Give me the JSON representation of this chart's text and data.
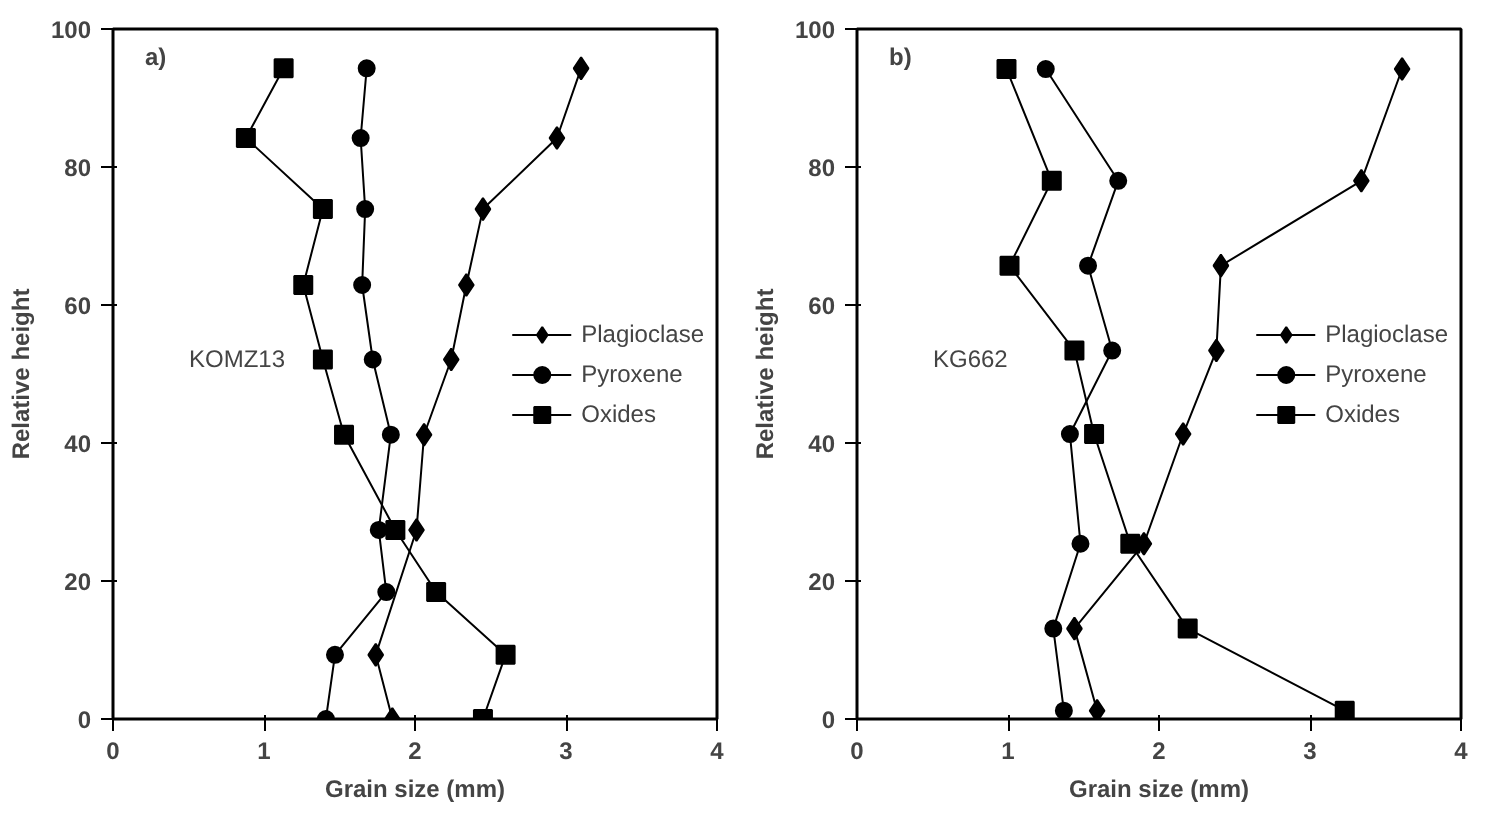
{
  "chart_data": [
    {
      "type": "line",
      "xlabel": "Grain size (mm)",
      "ylabel": "Relative height",
      "annotations": [
        "a)",
        "KOMZ13"
      ],
      "xlim": [
        0,
        4
      ],
      "ylim": [
        0,
        100
      ],
      "xticks": [
        0,
        1,
        2,
        3,
        4
      ],
      "yticks": [
        0,
        20,
        40,
        60,
        80,
        100
      ],
      "grid": false,
      "legend": "right",
      "series": [
        {
          "name": "Plagioclase",
          "color": "#000000",
          "marker": "diamond",
          "x": [
            3.1,
            2.94,
            2.45,
            2.34,
            2.24,
            2.06,
            2.01,
            null,
            1.74,
            1.85
          ],
          "values": [
            94.3,
            84.2,
            73.9,
            62.9,
            52.1,
            41.2,
            27.4,
            null,
            9.3,
            0
          ]
        },
        {
          "name": "Pyroxene",
          "color": "#000000",
          "marker": "circle",
          "x": [
            1.68,
            1.64,
            1.67,
            1.65,
            1.72,
            1.84,
            1.76,
            1.81,
            1.47,
            1.41
          ],
          "values": [
            94.3,
            84.2,
            73.9,
            62.9,
            52.1,
            41.2,
            27.4,
            18.4,
            9.3,
            0
          ]
        },
        {
          "name": "Oxides",
          "color": "#000000",
          "marker": "square",
          "x": [
            1.13,
            0.88,
            1.39,
            1.26,
            1.39,
            1.53,
            1.87,
            2.14,
            2.6,
            2.45
          ],
          "values": [
            94.3,
            84.2,
            73.9,
            62.9,
            52.1,
            41.2,
            27.4,
            18.4,
            9.3,
            0
          ]
        }
      ]
    },
    {
      "type": "line",
      "xlabel": "Grain size (mm)",
      "ylabel": "Relative height",
      "annotations": [
        "b)",
        "KG662"
      ],
      "xlim": [
        0,
        4
      ],
      "ylim": [
        0,
        100
      ],
      "xticks": [
        0,
        1,
        2,
        3,
        4
      ],
      "yticks": [
        0,
        20,
        40,
        60,
        80,
        100
      ],
      "grid": false,
      "legend": "right",
      "series": [
        {
          "name": "Plagioclase",
          "color": "#000000",
          "marker": "diamond",
          "x": [
            3.61,
            3.34,
            2.41,
            2.38,
            2.16,
            1.9,
            1.44,
            1.59
          ],
          "values": [
            94.2,
            78,
            65.7,
            53.4,
            41.3,
            25.4,
            13.1,
            1.2
          ]
        },
        {
          "name": "Pyroxene",
          "color": "#000000",
          "marker": "circle",
          "x": [
            1.25,
            1.73,
            1.53,
            1.69,
            1.41,
            1.48,
            1.3,
            1.37
          ],
          "values": [
            94.2,
            78,
            65.7,
            53.4,
            41.3,
            25.4,
            13.1,
            1.2
          ]
        },
        {
          "name": "Oxides",
          "color": "#000000",
          "marker": "square",
          "x": [
            0.99,
            1.29,
            1.01,
            1.44,
            1.57,
            1.81,
            2.19,
            3.23
          ],
          "values": [
            94.2,
            78,
            65.7,
            53.4,
            41.3,
            25.4,
            13.1,
            1.2
          ]
        }
      ]
    }
  ]
}
